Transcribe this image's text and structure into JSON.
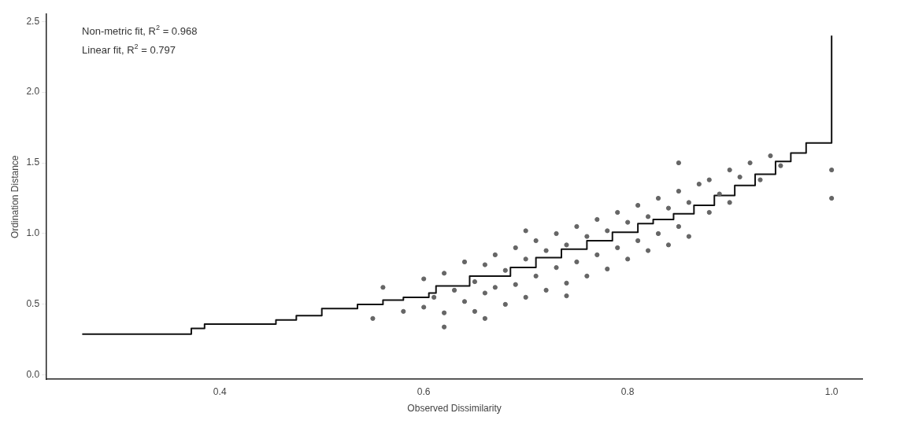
{
  "chart_data": {
    "type": "scatter",
    "xlabel": "Observed Dissimilarity",
    "ylabel": "Ordination Distance",
    "annotations": [
      "Non-metric fit, R$^{2}$ = 0.968",
      "Linear fit, R$^{2}$ = 0.797"
    ],
    "xlim": [
      0.23,
      1.03
    ],
    "xticks": [
      0.4,
      0.6,
      0.8,
      {
        "value": 1,
        "label": "1.0"
      }
    ],
    "ylim": [
      -0.03,
      2.55
    ],
    "yticks": [
      {
        "value": 0,
        "label": "0.0"
      },
      0.5,
      {
        "value": 1,
        "label": "1.0"
      },
      1.5,
      {
        "value": 2,
        "label": "2.0"
      },
      2.5
    ],
    "grid": false,
    "legend": false,
    "series": [
      {
        "color": "#666666",
        "marker": "circle",
        "x": [
          0.55,
          0.56,
          0.58,
          0.6,
          0.6,
          0.61,
          0.62,
          0.62,
          0.63,
          0.64,
          0.64,
          0.65,
          0.65,
          0.66,
          0.66,
          0.67,
          0.67,
          0.68,
          0.68,
          0.69,
          0.69,
          0.7,
          0.7,
          0.71,
          0.71,
          0.72,
          0.72,
          0.73,
          0.73,
          0.74,
          0.74,
          0.75,
          0.75,
          0.76,
          0.76,
          0.77,
          0.77,
          0.78,
          0.78,
          0.79,
          0.79,
          0.8,
          0.8,
          0.81,
          0.81,
          0.82,
          0.82,
          0.83,
          0.83,
          0.84,
          0.84,
          0.85,
          0.85,
          0.86,
          0.86,
          0.87,
          0.88,
          0.88,
          0.89,
          0.9,
          0.9,
          0.91,
          0.92,
          0.93,
          0.94,
          0.95,
          0.62,
          0.66,
          0.74,
          0.7,
          0.85,
          1.0,
          1.0
        ],
        "values": [
          0.4,
          0.62,
          0.45,
          0.68,
          0.48,
          0.55,
          0.72,
          0.44,
          0.6,
          0.8,
          0.52,
          0.66,
          0.45,
          0.78,
          0.58,
          0.85,
          0.62,
          0.5,
          0.74,
          0.9,
          0.64,
          0.82,
          0.55,
          0.95,
          0.7,
          0.6,
          0.88,
          1.0,
          0.76,
          0.65,
          0.92,
          1.05,
          0.8,
          0.7,
          0.98,
          1.1,
          0.85,
          0.75,
          1.02,
          1.15,
          0.9,
          0.82,
          1.08,
          1.2,
          0.95,
          0.88,
          1.12,
          1.25,
          1.0,
          0.92,
          1.18,
          1.3,
          1.05,
          1.22,
          0.98,
          1.35,
          1.15,
          1.38,
          1.28,
          1.45,
          1.22,
          1.4,
          1.5,
          1.38,
          1.55,
          1.48,
          0.34,
          0.4,
          0.56,
          1.02,
          1.5,
          1.45,
          1.25
        ]
      },
      {
        "type": "step",
        "color": "#111111",
        "marker": "none",
        "line_style": "solid",
        "x": [
          0.265,
          0.372,
          0.385,
          0.455,
          0.475,
          0.5,
          0.535,
          0.56,
          0.58,
          0.605,
          0.612,
          0.645,
          0.685,
          0.71,
          0.735,
          0.76,
          0.785,
          0.81,
          0.825,
          0.845,
          0.865,
          0.885,
          0.905,
          0.925,
          0.945,
          0.96,
          0.975,
          1.0
        ],
        "values": [
          0.29,
          0.33,
          0.36,
          0.39,
          0.42,
          0.47,
          0.5,
          0.53,
          0.55,
          0.58,
          0.63,
          0.7,
          0.76,
          0.83,
          0.89,
          0.95,
          1.01,
          1.07,
          1.1,
          1.14,
          1.2,
          1.27,
          1.34,
          1.42,
          1.51,
          1.57,
          1.64,
          2.4
        ]
      }
    ]
  }
}
